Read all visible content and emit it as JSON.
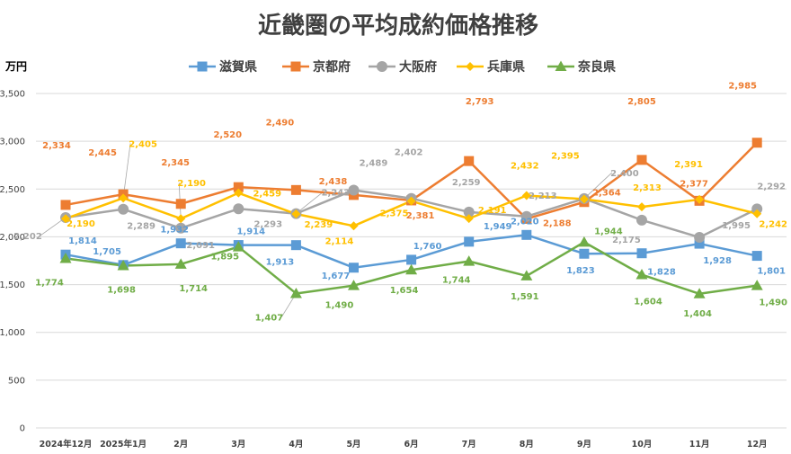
{
  "chart_data": {
    "type": "line",
    "title": "近畿圏の平均成約価格推移",
    "ylabel": "万円",
    "xlabel": "",
    "ylim": [
      0,
      3500
    ],
    "yticks": [
      "0",
      "500",
      "1,000",
      "1,500",
      "2,000",
      "2,500",
      "3,000",
      "3,500"
    ],
    "ytick_values": [
      0,
      500,
      1000,
      1500,
      2000,
      2500,
      3000,
      3500
    ],
    "categories": [
      "2024年12月",
      "2025年1月",
      "2月",
      "3月",
      "4月",
      "5月",
      "6月",
      "7月",
      "8月",
      "9月",
      "10月",
      "11月",
      "12月"
    ],
    "legend_position": "top",
    "series": [
      {
        "name": "滋賀県",
        "color": "#5b9bd5",
        "marker": "square",
        "values": [
          1814,
          1705,
          1932,
          1914,
          1913,
          1677,
          1760,
          1949,
          2020,
          1823,
          1828,
          1928,
          1801
        ],
        "labels": [
          "1,814",
          "1,705",
          "1,932",
          "1,914",
          "1,913",
          "1,677",
          "1,760",
          "1,949",
          "2,020",
          "1,823",
          "1,828",
          "1,928",
          "1,801"
        ]
      },
      {
        "name": "京都府",
        "color": "#ed7d31",
        "marker": "square",
        "values": [
          2334,
          2445,
          2345,
          2520,
          2490,
          2438,
          2381,
          2793,
          2188,
          2364,
          2805,
          2377,
          2985
        ],
        "labels": [
          "2,334",
          "2,445",
          "2,345",
          "2,520",
          "2,490",
          "2,438",
          "2,381",
          "2,793",
          "2,188",
          "2,364",
          "2,805",
          "2,377",
          "2,985"
        ]
      },
      {
        "name": "大阪府",
        "color": "#a5a5a5",
        "marker": "circle",
        "values": [
          2202,
          2289,
          2091,
          2293,
          2243,
          2489,
          2402,
          2259,
          2213,
          2400,
          2175,
          1995,
          2292
        ],
        "labels": [
          "2,202",
          "2,289",
          "2,091",
          "2,293",
          "2,243",
          "2,489",
          "2,402",
          "2,259",
          "2,213",
          "2,400",
          "2,175",
          "1,995",
          "2,292"
        ]
      },
      {
        "name": "兵庫県",
        "color": "#ffc000",
        "marker": "diamond",
        "values": [
          2190,
          2405,
          2190,
          2459,
          2239,
          2114,
          2375,
          2191,
          2432,
          2395,
          2313,
          2391,
          2242
        ],
        "labels": [
          "2,190",
          "2,405",
          "2,190",
          "2,459",
          "2,239",
          "2,114",
          "2,375",
          "2,191",
          "2,432",
          "2,395",
          "2,313",
          "2,391",
          "2,242"
        ]
      },
      {
        "name": "奈良県",
        "color": "#70ad47",
        "marker": "triangle",
        "values": [
          1774,
          1698,
          1714,
          1895,
          1407,
          1490,
          1654,
          1744,
          1591,
          1944,
          1604,
          1404,
          1490
        ],
        "labels": [
          "1,774",
          "1,698",
          "1,714",
          "1,895",
          "1,407",
          "1,490",
          "1,654",
          "1,744",
          "1,591",
          "1,944",
          "1,604",
          "1,404",
          "1,490"
        ]
      }
    ]
  }
}
